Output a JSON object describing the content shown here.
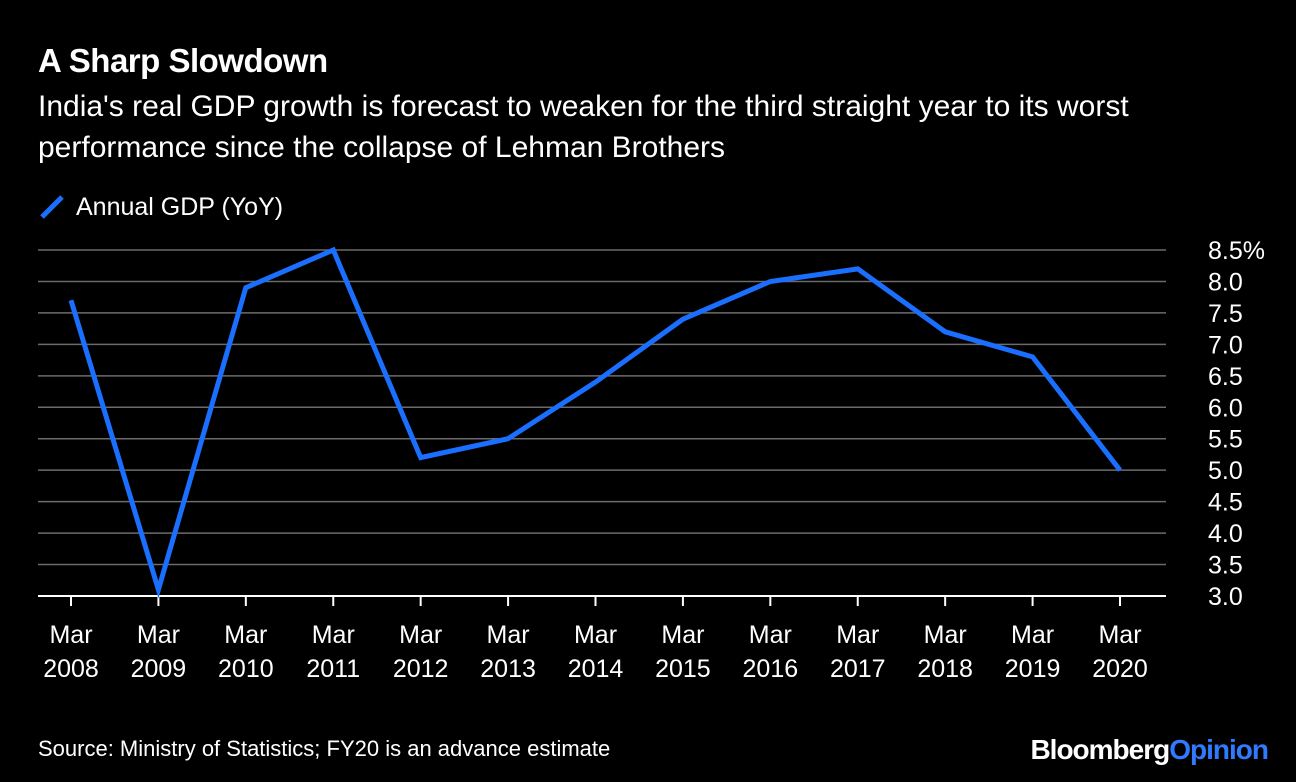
{
  "colors": {
    "background": "#000000",
    "text": "#ffffff",
    "line": "#1a6fff",
    "grid": "#6b6b6b",
    "brand_accent": "#2f7bff"
  },
  "header": {
    "title": "A Sharp Slowdown",
    "subtitle": "India's real GDP growth is forecast to weaken for the third straight year to its worst performance since the collapse of Lehman Brothers"
  },
  "legend": {
    "label": "Annual GDP (YoY)",
    "icon": "slash-line-icon"
  },
  "footer": {
    "source": "Source: Ministry of Statistics; FY20 is an advance estimate",
    "brand_primary": "Bloomberg",
    "brand_secondary": "Opinion"
  },
  "chart_data": {
    "type": "line",
    "title": "A Sharp Slowdown",
    "xlabel": "",
    "ylabel": "",
    "x": [
      {
        "month": "Mar",
        "year": "2008"
      },
      {
        "month": "Mar",
        "year": "2009"
      },
      {
        "month": "Mar",
        "year": "2010"
      },
      {
        "month": "Mar",
        "year": "2011"
      },
      {
        "month": "Mar",
        "year": "2012"
      },
      {
        "month": "Mar",
        "year": "2013"
      },
      {
        "month": "Mar",
        "year": "2014"
      },
      {
        "month": "Mar",
        "year": "2015"
      },
      {
        "month": "Mar",
        "year": "2016"
      },
      {
        "month": "Mar",
        "year": "2017"
      },
      {
        "month": "Mar",
        "year": "2018"
      },
      {
        "month": "Mar",
        "year": "2019"
      },
      {
        "month": "Mar",
        "year": "2020"
      }
    ],
    "series": [
      {
        "name": "Annual GDP (YoY)",
        "values": [
          7.7,
          3.1,
          7.9,
          8.5,
          5.2,
          5.5,
          6.4,
          7.4,
          8.0,
          8.2,
          7.2,
          6.8,
          5.0
        ]
      }
    ],
    "ylim": [
      3.0,
      8.5
    ],
    "yticks": [
      "8.5%",
      "8.0",
      "7.5",
      "7.0",
      "6.5",
      "6.0",
      "5.5",
      "5.0",
      "4.5",
      "4.0",
      "3.5",
      "3.0"
    ],
    "ytick_values": [
      8.5,
      8.0,
      7.5,
      7.0,
      6.5,
      6.0,
      5.5,
      5.0,
      4.5,
      4.0,
      3.5,
      3.0
    ],
    "grid": true,
    "legend_position": "top-left"
  }
}
